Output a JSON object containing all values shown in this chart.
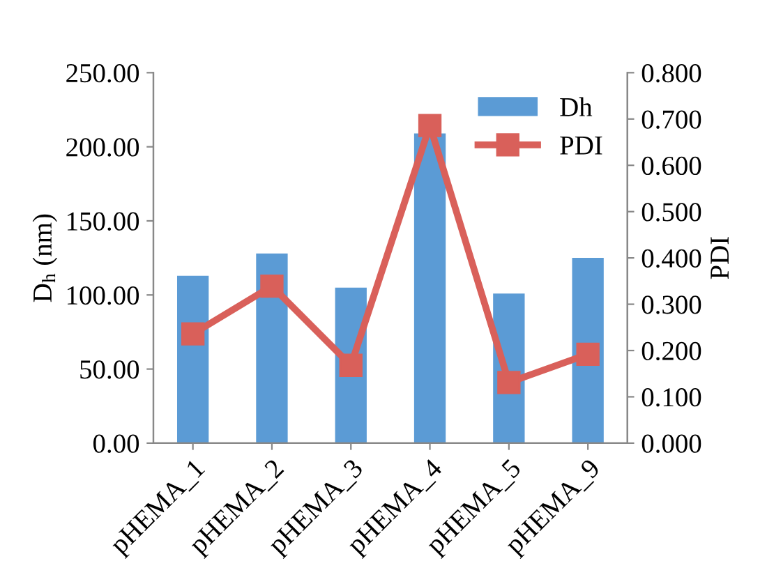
{
  "chart_data": {
    "type": "bar",
    "categories": [
      "pHEMA_1",
      "pHEMA_2",
      "pHEMA_3",
      "pHEMA_4",
      "pHEMA_5",
      "pHEMA_9"
    ],
    "series": [
      {
        "name": "Dh",
        "color": "#5b9bd5",
        "values": [
          113,
          128,
          105,
          209,
          101,
          125
        ]
      },
      {
        "name": "PDI",
        "type": "line",
        "axis": "y2",
        "color": "#d9605a",
        "marker": "square",
        "values": [
          0.236,
          0.339,
          0.168,
          0.686,
          0.131,
          0.192
        ]
      }
    ],
    "ylabel": "D$_{h}$ (nm)",
    "y2label": "PDI",
    "ylim": [
      0,
      250
    ],
    "yticks": [
      {
        "value": 0,
        "label": "0.00"
      },
      {
        "value": 50,
        "label": "50.00"
      },
      {
        "value": 100,
        "label": "100.00"
      },
      {
        "value": 150,
        "label": "150.00"
      },
      {
        "value": 200,
        "label": "200.00"
      },
      {
        "value": 250,
        "label": "250.00"
      }
    ],
    "y2lim": [
      0,
      0.8
    ],
    "y2ticks": [
      {
        "value": 0,
        "label": "0.000"
      },
      {
        "value": 0.1,
        "label": "0.100"
      },
      {
        "value": 0.2,
        "label": "0.200"
      },
      {
        "value": 0.3,
        "label": "0.300"
      },
      {
        "value": 0.4,
        "label": "0.400"
      },
      {
        "value": 0.5,
        "label": "0.500"
      },
      {
        "value": 0.6,
        "label": "0.600"
      },
      {
        "value": 0.7,
        "label": "0.700"
      },
      {
        "value": 0.8,
        "label": "0.800"
      }
    ],
    "grid": false,
    "legend": "top right"
  }
}
